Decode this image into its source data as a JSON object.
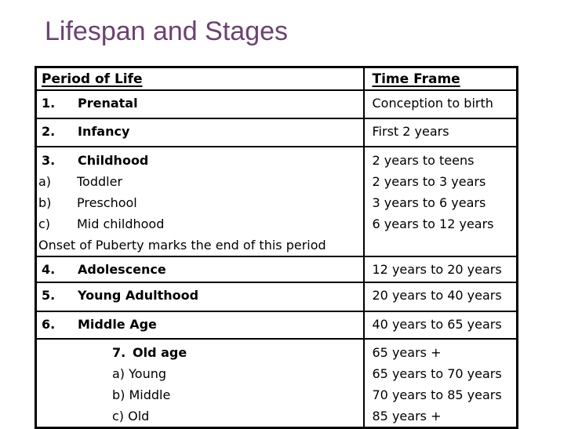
{
  "slide": {
    "title": "Lifespan and Stages"
  },
  "colors": {
    "title_text": "#6d4172",
    "body_text": "#000000",
    "table_border": "#000000",
    "background": "#ffffff"
  },
  "table": {
    "headers": {
      "period": "Period of Life",
      "time": "Time Frame"
    },
    "rows": [
      {
        "num": "1.",
        "name": "Prenatal",
        "time": "Conception to birth"
      },
      {
        "num": "2.",
        "name": "Infancy",
        "time": "First 2 years"
      },
      {
        "num": "3.",
        "name": "Childhood",
        "sub": [
          {
            "letter": "a)",
            "label": "Toddler"
          },
          {
            "letter": "b)",
            "label": "Preschool"
          },
          {
            "letter": "c)",
            "label": "Mid childhood"
          }
        ],
        "note": "Onset of Puberty marks the end of this period",
        "times": [
          "2 years to teens",
          "2 years to 3 years",
          "3 years to 6 years",
          "6 years to 12 years"
        ]
      },
      {
        "num": "4.",
        "name": "Adolescence",
        "time": "12 years to 20 years"
      },
      {
        "num": "5.",
        "name": "Young Adulthood",
        "time": "20 years to 40 years"
      },
      {
        "num": "6.",
        "name": "Middle Age",
        "time": "40 years to 65 years"
      },
      {
        "num": "7.",
        "name": "Old age",
        "sub": [
          "a) Young",
          "b) Middle",
          "c) Old"
        ],
        "times": [
          "65 years +",
          "65 years to 70 years",
          "70 years to 85 years",
          "85 years +"
        ]
      }
    ]
  }
}
